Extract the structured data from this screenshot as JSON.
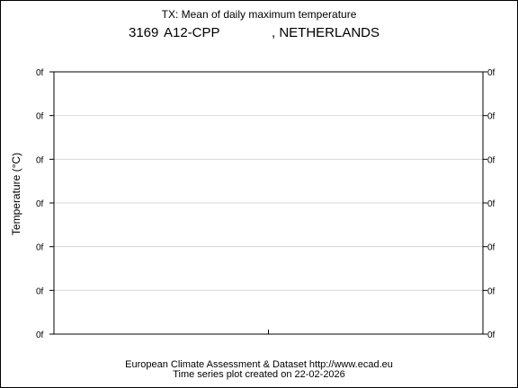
{
  "chart_data": {
    "type": "line",
    "title": "TX: Mean of daily maximum temperature",
    "station": {
      "id": "3169",
      "name": "A12-CPP",
      "country": ", NETHERLANDS"
    },
    "ylabel": "Temperature (°C)",
    "y_tick_labels": [
      "0f",
      "0f",
      "0f",
      "0f",
      "0f",
      "0f",
      "0f"
    ],
    "series": [],
    "grid": true
  },
  "footer": {
    "line1": "European Climate Assessment & Dataset  http://www.ecad.eu",
    "line2": "Time series plot created on 22-02-2026"
  }
}
